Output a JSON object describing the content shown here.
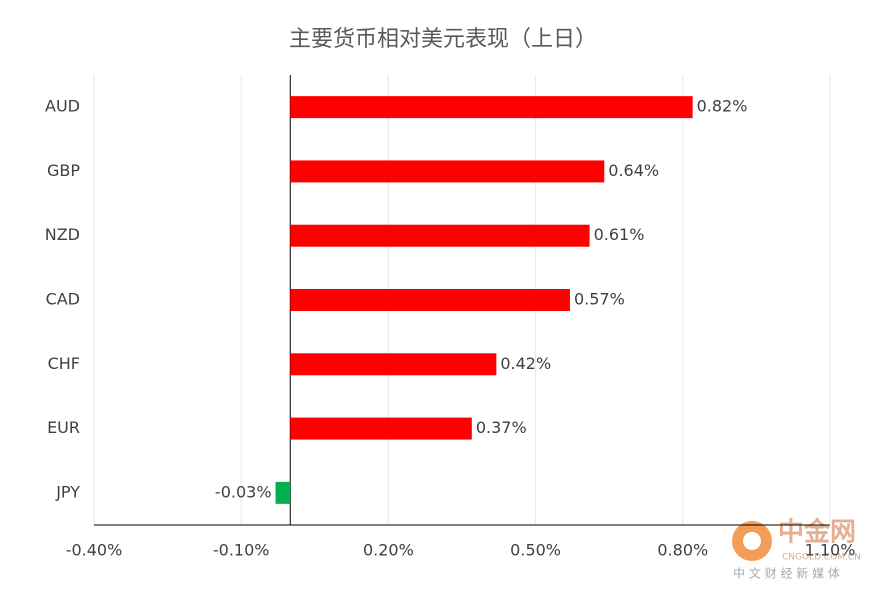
{
  "chart_data": {
    "type": "hbar",
    "title": "主要货币相对美元表现（上日）",
    "categories": [
      "AUD",
      "GBP",
      "NZD",
      "CAD",
      "CHF",
      "EUR",
      "JPY"
    ],
    "values": [
      0.82,
      0.64,
      0.61,
      0.57,
      0.42,
      0.37,
      -0.03
    ],
    "value_labels": [
      "0.82%",
      "0.64%",
      "0.61%",
      "0.57%",
      "0.42%",
      "0.37%",
      "-0.03%"
    ],
    "colors": [
      "#ff0000",
      "#ff0000",
      "#ff0000",
      "#ff0000",
      "#ff0000",
      "#ff0000",
      "#00b050"
    ],
    "xlim": [
      -0.4,
      1.1
    ],
    "xticks": [
      {
        "value": -0.4,
        "label": "-0.40%"
      },
      {
        "value": -0.1,
        "label": "-0.10%"
      },
      {
        "value": 0.2,
        "label": "0.20%"
      },
      {
        "value": 0.5,
        "label": "0.50%"
      },
      {
        "value": 0.8,
        "label": "0.80%"
      },
      {
        "value": 1.1,
        "label": "1.10%"
      }
    ],
    "grid": true
  },
  "watermark": {
    "brand": "中金网",
    "site": "CNGOLD.COM.CN",
    "slogan": "中 文 财 经 新 媒 体"
  }
}
